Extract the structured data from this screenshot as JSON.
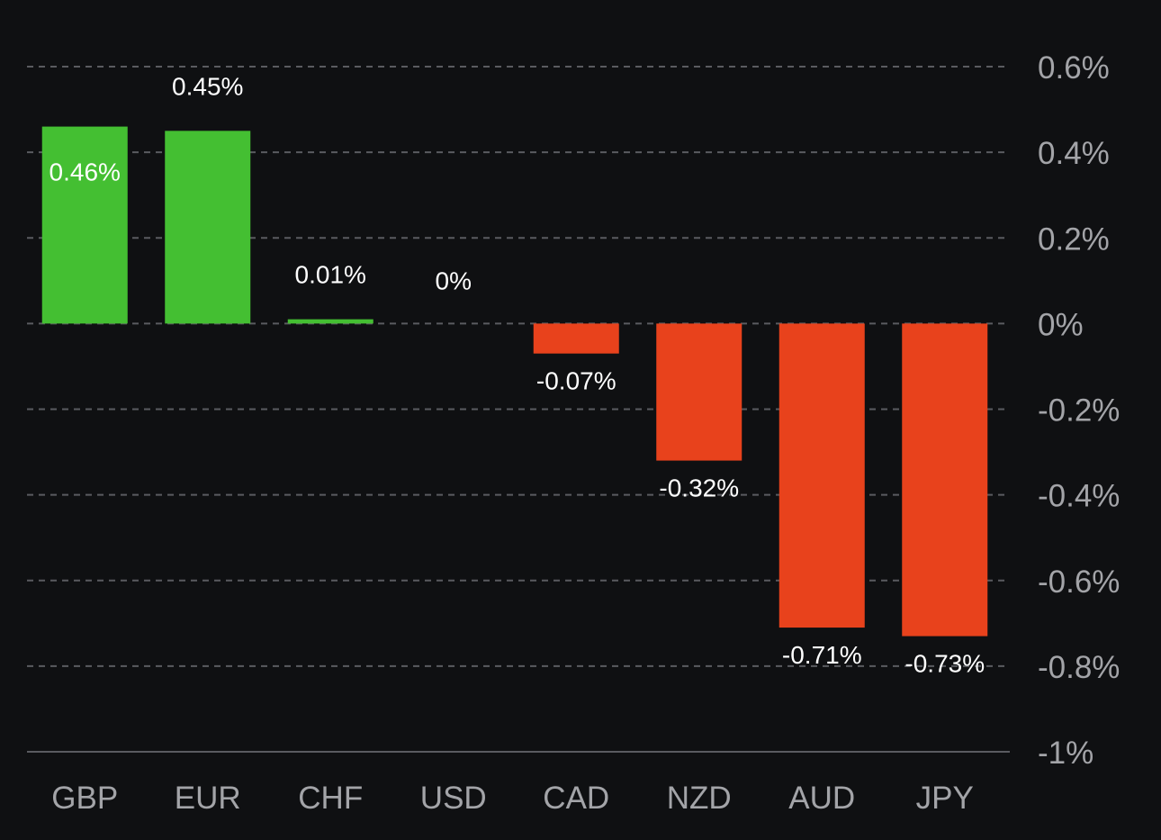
{
  "chart_data": {
    "type": "bar",
    "categories": [
      "GBP",
      "EUR",
      "CHF",
      "USD",
      "CAD",
      "NZD",
      "AUD",
      "JPY"
    ],
    "values": [
      0.46,
      0.45,
      0.01,
      0,
      -0.07,
      -0.32,
      -0.71,
      -0.73
    ],
    "data_labels": [
      "0.46%",
      "0.45%",
      "0.01%",
      "0%",
      "-0.07%",
      "-0.32%",
      "-0.71%",
      "-0.73%"
    ],
    "ylim": [
      -1,
      0.6
    ],
    "yticks": [
      0.6,
      0.4,
      0.2,
      0,
      -0.2,
      -0.4,
      -0.6,
      -0.8,
      -1
    ],
    "ytick_labels": [
      "0.6%",
      "0.4%",
      "0.2%",
      "0%",
      "-0.2%",
      "-0.4%",
      "-0.6%",
      "-0.8%",
      "-1%"
    ],
    "y_axis_side": "right",
    "grid": true,
    "title": "",
    "xlabel": "",
    "ylabel": "",
    "colors": {
      "positive": "#44bf32",
      "negative": "#e8421c",
      "background": "#0f1012",
      "grid": "#5a5b60"
    }
  }
}
